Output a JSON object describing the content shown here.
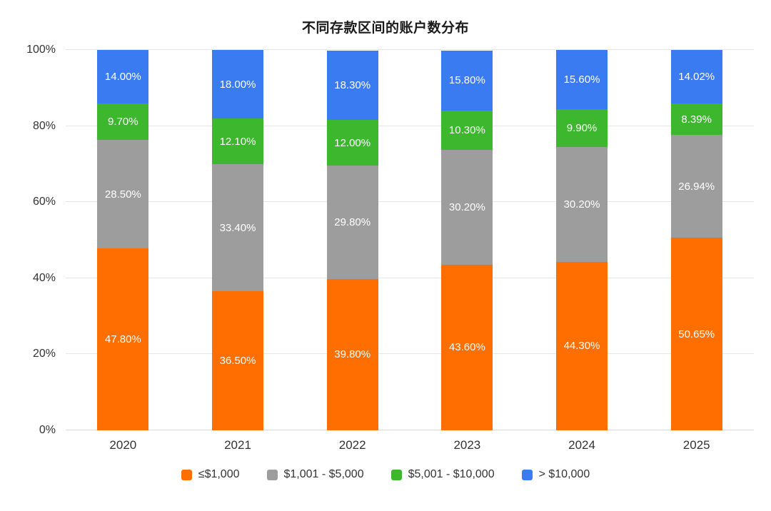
{
  "title": "不同存款区间的账户数分布",
  "chart_data": {
    "type": "bar",
    "stacked": true,
    "title": "不同存款区间的账户数分布",
    "categories": [
      "2020",
      "2021",
      "2022",
      "2023",
      "2024",
      "2025"
    ],
    "series": [
      {
        "name": "≤$1,000",
        "color": "#FF6E00",
        "values": [
          47.8,
          36.5,
          39.8,
          43.6,
          44.3,
          50.65
        ]
      },
      {
        "name": "$1,001 - $5,000",
        "color": "#9D9D9D",
        "values": [
          28.5,
          33.4,
          29.8,
          30.2,
          30.2,
          26.94
        ]
      },
      {
        "name": "$5,001 - $10,000",
        "color": "#3CB72E",
        "values": [
          9.7,
          12.1,
          12.0,
          10.3,
          9.9,
          8.39
        ]
      },
      {
        "name": "> $10,000",
        "color": "#3B7BF2",
        "values": [
          14.0,
          18.0,
          18.3,
          15.8,
          15.6,
          14.02
        ]
      }
    ],
    "y_ticks": [
      "0%",
      "20%",
      "40%",
      "60%",
      "80%",
      "100%"
    ],
    "ylim": [
      0,
      100
    ],
    "grid": true,
    "legend_position": "bottom",
    "label_format": "percent_two_decimals",
    "xlabel": "",
    "ylabel": ""
  }
}
